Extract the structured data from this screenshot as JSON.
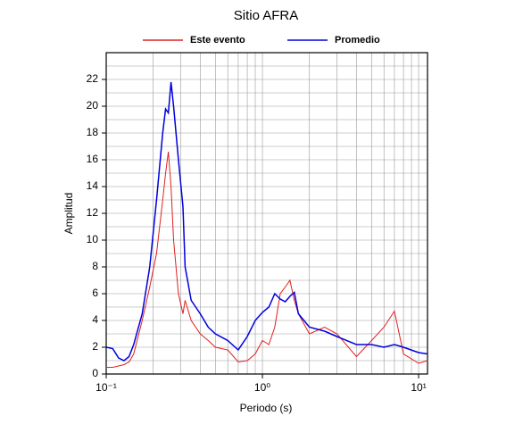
{
  "chart_data": {
    "type": "line",
    "title": "Sitio AFRA",
    "x_label": "Periodo (s)",
    "y_label": "Amplitud",
    "log_x": true,
    "grid": true,
    "legend": "top",
    "x": [
      0.1,
      0.11,
      0.12,
      0.13,
      0.14,
      0.15,
      0.17,
      0.19,
      0.21,
      0.23,
      0.24,
      0.25,
      0.26,
      0.27,
      0.29,
      0.31,
      0.32,
      0.35,
      0.4,
      0.45,
      0.5,
      0.6,
      0.7,
      0.8,
      0.9,
      1.0,
      1.1,
      1.2,
      1.3,
      1.4,
      1.5,
      1.6,
      1.7,
      2.0,
      2.5,
      3.0,
      4.0,
      5,
      6,
      7,
      8,
      10,
      11.4
    ],
    "series": [
      {
        "name": "Este evento",
        "color": "#e02020",
        "values": [
          0.5,
          0.5,
          0.6,
          0.7,
          0.9,
          1.5,
          4.0,
          6.5,
          9,
          13,
          15,
          16.6,
          14,
          10,
          6,
          4.5,
          5.5,
          4.0,
          3,
          2.5,
          2,
          1.8,
          0.9,
          1.0,
          1.5,
          2.5,
          2.2,
          3.5,
          6,
          6.5,
          7.0,
          5.5,
          4.5,
          3.0,
          3.5,
          3.0,
          1.3,
          2.5,
          3.5,
          4.7,
          1.5,
          0.8,
          1.0
        ]
      },
      {
        "name": "Promedio",
        "color": "#0000dd",
        "values": [
          2.0,
          1.9,
          1.2,
          1.0,
          1.3,
          2.2,
          4.5,
          8,
          13,
          18,
          19.8,
          19.5,
          21.8,
          20,
          16,
          12.5,
          8,
          5.5,
          4.5,
          3.5,
          3.0,
          2.5,
          1.8,
          2.8,
          4.0,
          4.6,
          5.0,
          6.0,
          5.6,
          5.4,
          5.8,
          6.1,
          4.5,
          3.5,
          3.2,
          2.8,
          2.2,
          2.2,
          2.0,
          2.2,
          2.0,
          1.6,
          1.5
        ]
      }
    ],
    "xlim": [
      0.1,
      11.4
    ],
    "xticks": [
      {
        "value": 0.1,
        "label": "10⁻¹"
      },
      {
        "value": 1,
        "label": "10⁰"
      },
      {
        "value": 10,
        "label": "10¹"
      }
    ],
    "ylim": [
      0,
      24
    ],
    "yticks": [
      0,
      2,
      4,
      6,
      8,
      10,
      12,
      14,
      16,
      18,
      20,
      22
    ]
  }
}
